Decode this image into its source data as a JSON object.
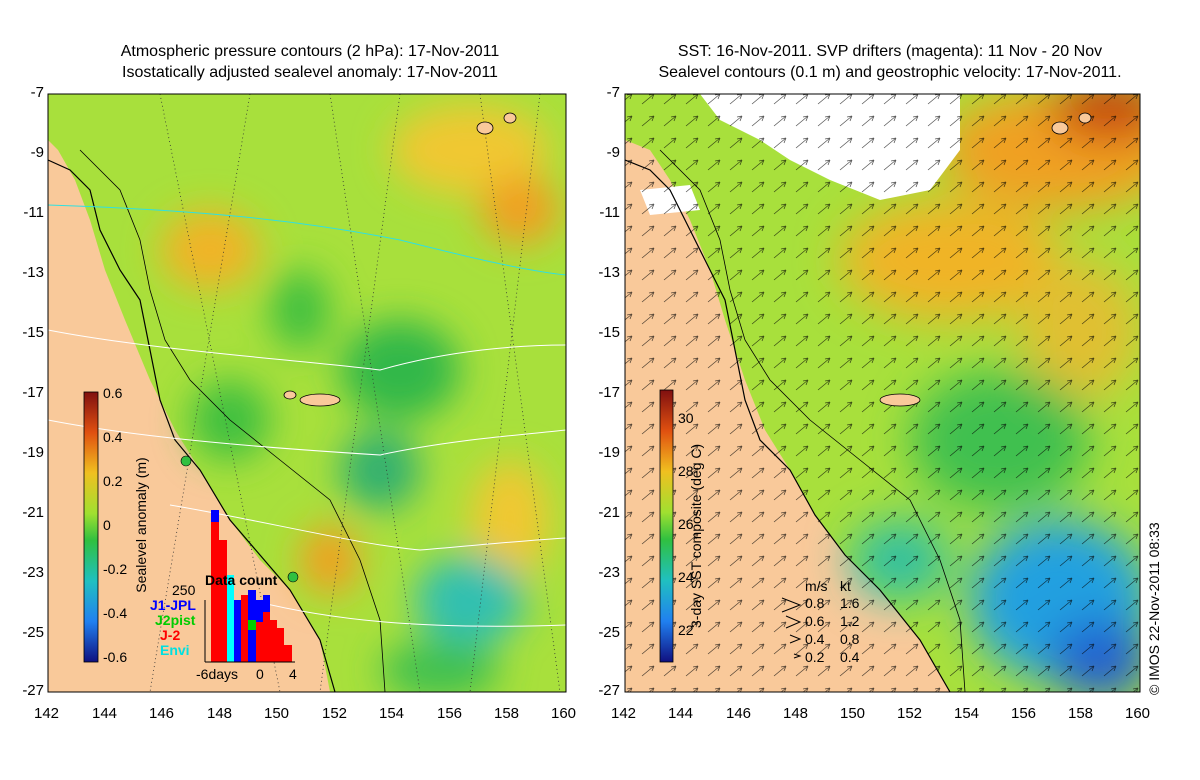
{
  "left_panel": {
    "title_line1": "Atmospheric pressure contours (2 hPa): 17-Nov-2011",
    "title_line2": "Isostatically adjusted sealevel anomaly: 17-Nov-2011",
    "colorbar": {
      "label": "Sealevel anomaly (m)",
      "ticks": [
        "0.6",
        "0.4",
        "0.2",
        "0",
        "-0.2",
        "-0.4",
        "-0.6"
      ]
    },
    "data_count": {
      "title": "Data count",
      "ymax_label": "250",
      "series": [
        {
          "name": "J1-JPL",
          "color": "#0000ff"
        },
        {
          "name": "J2pist",
          "color": "#00cc00"
        },
        {
          "name": "J-2",
          "color": "#ff0000"
        },
        {
          "name": "Envi",
          "color": "#00ffff"
        }
      ],
      "x_ticks": [
        "-6days",
        "0",
        "4"
      ]
    }
  },
  "right_panel": {
    "title_line1": "SST: 16-Nov-2011. SVP drifters (magenta): 11 Nov - 20 Nov",
    "title_line2": "Sealevel contours (0.1 m) and geostrophic velocity: 17-Nov-2011.",
    "colorbar": {
      "label": "3-day SST composite (deg C)",
      "ticks": [
        "30",
        "28",
        "26",
        "24",
        "22"
      ]
    },
    "velocity_legend": {
      "header_ms": "m/s",
      "header_kt": "kt",
      "rows": [
        {
          "ms": "0.8",
          "kt": "1.6"
        },
        {
          "ms": "0.6",
          "kt": "1.2"
        },
        {
          "ms": "0.4",
          "kt": "0.8"
        },
        {
          "ms": "0.2",
          "kt": "0.4"
        }
      ]
    }
  },
  "axes": {
    "y_ticks": [
      "-7",
      "-9",
      "-11",
      "-13",
      "-15",
      "-17",
      "-19",
      "-21",
      "-23",
      "-25",
      "-27"
    ],
    "x_ticks": [
      "142",
      "144",
      "146",
      "148",
      "150",
      "152",
      "154",
      "156",
      "158",
      "160"
    ]
  },
  "copyright": "© IMOS 22-Nov-2011 08:33",
  "colors": {
    "land": "#f9c99a",
    "sea_mid": "#a8e03c",
    "sea_green": "#3cc83c",
    "sea_orange": "#f0b428",
    "sst_warm": "#f0a020",
    "sst_hot": "#c84010",
    "sst_cool": "#20a0e0"
  }
}
